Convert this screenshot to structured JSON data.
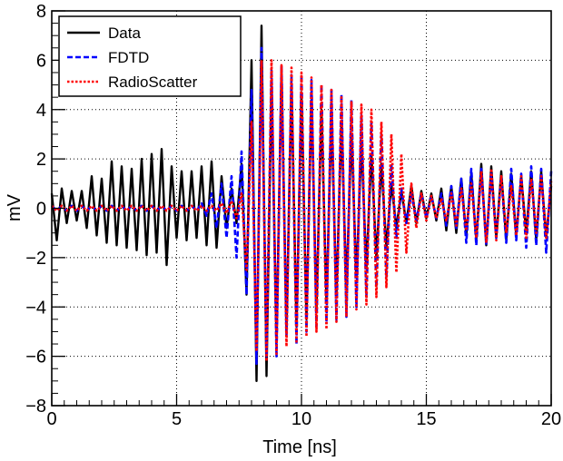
{
  "chart_data": {
    "type": "line",
    "xlabel": "Time [ns]",
    "ylabel": "mV",
    "xlim": [
      0,
      20
    ],
    "ylim": [
      -8,
      8
    ],
    "xticks": [
      "0",
      "5",
      "10",
      "15",
      "20"
    ],
    "yticks": [
      "−8",
      "−6",
      "−4",
      "−2",
      "0",
      "2",
      "4",
      "6",
      "8"
    ],
    "grid": true,
    "legend_position": "top-left",
    "series": [
      {
        "name": "Data",
        "color": "#000000",
        "style": "solid",
        "x": [
          0.0,
          0.2,
          0.4,
          0.6,
          0.8,
          1.0,
          1.2,
          1.4,
          1.6,
          1.8,
          2.0,
          2.2,
          2.4,
          2.6,
          2.8,
          3.0,
          3.2,
          3.4,
          3.6,
          3.8,
          4.0,
          4.2,
          4.4,
          4.6,
          4.8,
          5.0,
          5.2,
          5.4,
          5.6,
          5.8,
          6.0,
          6.2,
          6.4,
          6.6,
          6.8,
          7.0,
          7.2,
          7.4,
          7.6,
          7.8,
          8.0,
          8.2,
          8.4,
          8.6,
          8.8,
          9.0,
          9.2,
          9.4,
          9.6,
          9.8,
          10.0,
          10.2,
          10.4,
          10.6,
          10.8,
          11.0,
          11.2,
          11.4,
          11.6,
          11.8,
          12.0,
          12.2,
          12.4,
          12.6,
          12.8,
          13.0,
          13.2,
          13.4,
          13.6,
          13.8,
          14.0,
          14.2,
          14.4,
          14.6,
          14.8,
          15.0,
          15.2,
          15.4,
          15.6,
          15.8,
          16.0,
          16.2,
          16.4,
          16.6,
          16.8,
          17.0,
          17.2,
          17.4,
          17.6,
          17.8,
          18.0,
          18.2,
          18.4,
          18.6,
          18.8,
          19.0,
          19.2,
          19.4,
          19.6,
          19.8,
          20.0
        ],
        "y": [
          0.6,
          -1.3,
          0.8,
          -0.6,
          0.7,
          -0.5,
          0.7,
          -0.8,
          1.3,
          -1.1,
          1.2,
          -1.4,
          1.9,
          -1.5,
          1.7,
          -1.6,
          1.6,
          -1.7,
          2.0,
          -1.9,
          2.2,
          -1.8,
          2.4,
          -2.3,
          1.7,
          -1.2,
          1.5,
          -1.3,
          1.5,
          -1.2,
          1.7,
          -1.5,
          1.9,
          -1.6,
          1.3,
          -0.8,
          0.8,
          -0.6,
          1.8,
          -3.5,
          6.0,
          -7.0,
          7.4,
          -6.8,
          5.0,
          -5.3,
          5.5,
          -5.0,
          5.0,
          -4.8,
          4.6,
          -4.5,
          4.4,
          -4.1,
          4.0,
          -3.8,
          3.6,
          -3.5,
          3.4,
          -3.2,
          3.0,
          -2.8,
          2.6,
          -2.4,
          2.2,
          -2.0,
          1.8,
          -1.6,
          1.0,
          -0.8,
          0.7,
          -0.6,
          0.9,
          -0.6,
          0.7,
          -0.4,
          0.6,
          -0.5,
          0.8,
          -0.9,
          0.9,
          -1.0,
          1.2,
          -1.1,
          1.4,
          -1.3,
          1.8,
          -1.5,
          1.7,
          -1.2,
          1.5,
          -1.3,
          1.4,
          -1.1,
          1.3,
          -1.0,
          1.5,
          -1.3,
          1.5,
          -1.2,
          0.9
        ]
      },
      {
        "name": "FDTD",
        "color": "#0000ff",
        "style": "dashed",
        "x": [
          0.0,
          0.2,
          0.4,
          0.6,
          0.8,
          1.0,
          1.2,
          1.4,
          1.6,
          1.8,
          2.0,
          2.2,
          2.4,
          2.6,
          2.8,
          3.0,
          3.2,
          3.4,
          3.6,
          3.8,
          4.0,
          4.2,
          4.4,
          4.6,
          4.8,
          5.0,
          5.2,
          5.4,
          5.6,
          5.8,
          6.0,
          6.2,
          6.4,
          6.6,
          6.8,
          7.0,
          7.2,
          7.4,
          7.6,
          7.8,
          8.0,
          8.2,
          8.4,
          8.6,
          8.8,
          9.0,
          9.2,
          9.4,
          9.6,
          9.8,
          10.0,
          10.2,
          10.4,
          10.6,
          10.8,
          11.0,
          11.2,
          11.4,
          11.6,
          11.8,
          12.0,
          12.2,
          12.4,
          12.6,
          12.8,
          13.0,
          13.2,
          13.4,
          13.6,
          13.8,
          14.0,
          14.2,
          14.4,
          14.6,
          14.8,
          15.0,
          15.2,
          15.4,
          15.6,
          15.8,
          16.0,
          16.2,
          16.4,
          16.6,
          16.8,
          17.0,
          17.2,
          17.4,
          17.6,
          17.8,
          18.0,
          18.2,
          18.4,
          18.6,
          18.8,
          19.0,
          19.2,
          19.4,
          19.6,
          19.8,
          20.0
        ],
        "y": [
          0.1,
          -0.1,
          0.1,
          -0.1,
          0.1,
          -0.1,
          0.1,
          -0.1,
          0.1,
          -0.1,
          0.1,
          -0.1,
          0.1,
          -0.1,
          0.1,
          -0.1,
          0.1,
          -0.1,
          0.1,
          -0.1,
          0.1,
          -0.1,
          0.1,
          -0.1,
          0.1,
          -0.1,
          0.1,
          -0.1,
          0.1,
          -0.1,
          0.2,
          -0.3,
          0.6,
          -0.8,
          1.0,
          -1.2,
          1.3,
          -2.0,
          2.3,
          -3.5,
          4.8,
          -6.3,
          6.5,
          -6.0,
          5.6,
          -6.0,
          5.8,
          -5.2,
          5.4,
          -5.5,
          5.4,
          -5.0,
          5.2,
          -4.8,
          5.0,
          -4.6,
          4.8,
          -4.5,
          4.6,
          -4.4,
          4.4,
          -4.0,
          3.8,
          -3.6,
          3.5,
          -3.2,
          3.0,
          -2.8,
          1.8,
          -1.2,
          0.8,
          -0.6,
          0.6,
          -0.5,
          0.6,
          -0.4,
          0.5,
          -0.4,
          0.6,
          -0.7,
          0.9,
          -0.8,
          1.2,
          -1.4,
          1.6,
          -1.5,
          1.6,
          -1.5,
          1.4,
          -1.2,
          1.3,
          -1.4,
          1.6,
          -1.3,
          1.4,
          -1.6,
          1.7,
          -1.5,
          1.6,
          -1.8,
          1.5
        ]
      },
      {
        "name": "RadioScatter",
        "color": "#ff0000",
        "style": "dotted",
        "x": [
          0.0,
          0.2,
          0.4,
          0.6,
          0.8,
          1.0,
          1.2,
          1.4,
          1.6,
          1.8,
          2.0,
          2.2,
          2.4,
          2.6,
          2.8,
          3.0,
          3.2,
          3.4,
          3.6,
          3.8,
          4.0,
          4.2,
          4.4,
          4.6,
          4.8,
          5.0,
          5.2,
          5.4,
          5.6,
          5.8,
          6.0,
          6.2,
          6.4,
          6.6,
          6.8,
          7.0,
          7.2,
          7.4,
          7.6,
          7.8,
          8.0,
          8.2,
          8.4,
          8.6,
          8.8,
          9.0,
          9.2,
          9.4,
          9.6,
          9.8,
          10.0,
          10.2,
          10.4,
          10.6,
          10.8,
          11.0,
          11.2,
          11.4,
          11.6,
          11.8,
          12.0,
          12.2,
          12.4,
          12.6,
          12.8,
          13.0,
          13.2,
          13.4,
          13.6,
          13.8,
          14.0,
          14.2,
          14.4,
          14.6,
          14.8,
          15.0,
          15.2,
          15.4,
          15.6,
          15.8,
          16.0,
          16.2,
          16.4,
          16.6,
          16.8,
          17.0,
          17.2,
          17.4,
          17.6,
          17.8,
          18.0,
          18.2,
          18.4,
          18.6,
          18.8,
          19.0,
          19.2,
          19.4,
          19.6,
          19.8,
          20.0
        ],
        "y": [
          0.1,
          -0.1,
          0.1,
          -0.1,
          0.1,
          -0.1,
          0.1,
          -0.1,
          0.1,
          -0.1,
          0.1,
          -0.1,
          0.1,
          -0.1,
          0.1,
          -0.1,
          0.1,
          -0.1,
          0.1,
          -0.1,
          0.1,
          -0.1,
          0.1,
          -0.1,
          0.1,
          -0.1,
          0.1,
          -0.1,
          0.1,
          -0.1,
          0.1,
          -0.1,
          0.1,
          -0.1,
          0.2,
          -0.2,
          0.3,
          -0.4,
          0.6,
          -2.5,
          3.5,
          -5.8,
          6.0,
          -6.2,
          6.0,
          -5.9,
          5.8,
          -5.6,
          5.7,
          -5.4,
          5.5,
          -5.2,
          5.3,
          -5.0,
          5.0,
          -4.9,
          4.8,
          -4.6,
          4.5,
          -4.4,
          4.3,
          -4.1,
          4.2,
          -3.9,
          4.0,
          -3.6,
          3.5,
          -3.2,
          3.0,
          -2.6,
          2.2,
          -1.8,
          1.0,
          -0.8,
          0.6,
          -0.5,
          0.5,
          -0.4,
          0.4,
          -0.5,
          0.6,
          -0.7,
          0.8,
          -0.9,
          1.0,
          -1.2,
          1.5,
          -1.4,
          1.6,
          -1.3,
          1.3,
          -1.0,
          0.9,
          -1.1,
          1.3,
          -1.2,
          1.2,
          -1.0,
          1.3,
          -1.2,
          1.1
        ]
      }
    ]
  }
}
